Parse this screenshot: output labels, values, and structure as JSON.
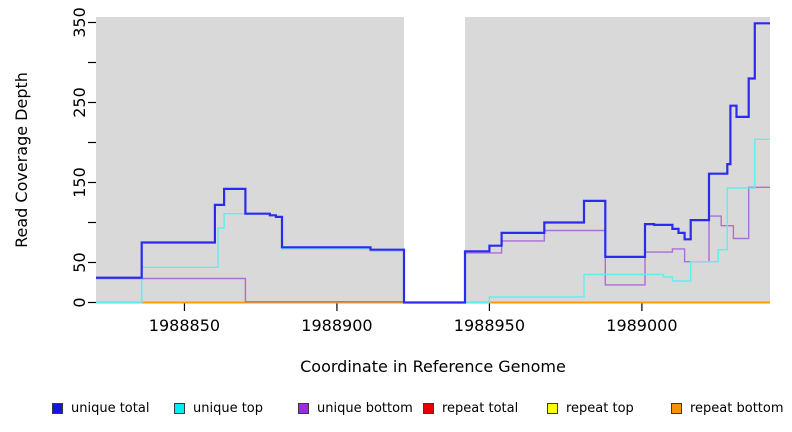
{
  "figure": {
    "y_axis_title": "Read Coverage Depth",
    "x_axis_title": "Coordinate in Reference Genome"
  },
  "colors": {
    "plot_background": "#d9d9d9",
    "masked_region": "#ffffff",
    "axis": "#000000"
  },
  "legend": {
    "items": [
      {
        "label": "unique total",
        "color": "#1414e8"
      },
      {
        "label": "unique top",
        "color": "#00eeee"
      },
      {
        "label": "unique bottom",
        "color": "#9c2be0"
      },
      {
        "label": "repeat total",
        "color": "#e60000"
      },
      {
        "label": "repeat top",
        "color": "#ffff00"
      },
      {
        "label": "repeat bottom",
        "color": "#f59300"
      }
    ]
  },
  "chart_data": {
    "type": "line",
    "title": "",
    "xlabel": "Coordinate in Reference Genome",
    "ylabel": "Read Coverage Depth",
    "xlim": [
      1988821,
      1989042
    ],
    "ylim": [
      0,
      357
    ],
    "grid": false,
    "legend_position": "bottom",
    "step_mode": true,
    "masked_region_x": [
      1988922,
      1988942
    ],
    "x_ticks": [
      {
        "v": 1988850,
        "label": "1988850"
      },
      {
        "v": 1988900,
        "label": "1988900"
      },
      {
        "v": 1988950,
        "label": "1988950"
      },
      {
        "v": 1989000,
        "label": "1989000"
      }
    ],
    "y_ticks": [
      {
        "v": 0,
        "label": "0"
      },
      {
        "v": 50,
        "label": "50"
      },
      {
        "v": 100,
        "label": ""
      },
      {
        "v": 150,
        "label": "150"
      },
      {
        "v": 200,
        "label": ""
      },
      {
        "v": 250,
        "label": "250"
      },
      {
        "v": 300,
        "label": ""
      },
      {
        "v": 350,
        "label": "350"
      }
    ],
    "series": [
      {
        "name": "repeat total",
        "color": "#e60000",
        "width": 2,
        "points": [
          [
            1988821,
            0
          ],
          [
            1989042,
            0
          ]
        ]
      },
      {
        "name": "repeat top",
        "color": "#ffff00",
        "width": 2,
        "points": [
          [
            1988821,
            0
          ],
          [
            1989042,
            0
          ]
        ]
      },
      {
        "name": "repeat bottom",
        "color": "#ff9d00",
        "width": 2,
        "points": [
          [
            1988821,
            0
          ],
          [
            1989042,
            0
          ]
        ]
      },
      {
        "name": "unique bottom",
        "color": "#ab6fd8",
        "width": 1.4,
        "points": [
          [
            1988821,
            30
          ],
          [
            1988870,
            1
          ],
          [
            1988922,
            0
          ],
          [
            1988942,
            62
          ],
          [
            1988954,
            77
          ],
          [
            1988968,
            90
          ],
          [
            1988988,
            22
          ],
          [
            1989001,
            63
          ],
          [
            1989010,
            67
          ],
          [
            1989014,
            51
          ],
          [
            1989022,
            108
          ],
          [
            1989026,
            96
          ],
          [
            1989030,
            80
          ],
          [
            1989035,
            144
          ],
          [
            1989042,
            144
          ]
        ]
      },
      {
        "name": "unique top",
        "color": "#5cefef",
        "width": 1.4,
        "points": [
          [
            1988821,
            0
          ],
          [
            1988836,
            44
          ],
          [
            1988861,
            93
          ],
          [
            1988863,
            111
          ],
          [
            1988878,
            109
          ],
          [
            1988880,
            107
          ],
          [
            1988882,
            67
          ],
          [
            1988911,
            64
          ],
          [
            1988922,
            0
          ],
          [
            1988950,
            7
          ],
          [
            1988981,
            35
          ],
          [
            1989007,
            32
          ],
          [
            1989010,
            27
          ],
          [
            1989016,
            51
          ],
          [
            1989025,
            66
          ],
          [
            1989028,
            143
          ],
          [
            1989037,
            204
          ],
          [
            1989042,
            204
          ]
        ]
      },
      {
        "name": "unique total",
        "color": "#2b2bef",
        "width": 2.2,
        "points": [
          [
            1988821,
            31
          ],
          [
            1988836,
            75
          ],
          [
            1988860,
            122
          ],
          [
            1988863,
            142
          ],
          [
            1988870,
            111
          ],
          [
            1988878,
            109
          ],
          [
            1988880,
            107
          ],
          [
            1988882,
            69
          ],
          [
            1988911,
            66
          ],
          [
            1988922,
            0
          ],
          [
            1988942,
            64
          ],
          [
            1988950,
            71
          ],
          [
            1988954,
            87
          ],
          [
            1988968,
            100
          ],
          [
            1988981,
            127
          ],
          [
            1988988,
            57
          ],
          [
            1989001,
            98
          ],
          [
            1989004,
            97
          ],
          [
            1989010,
            92
          ],
          [
            1989012,
            87
          ],
          [
            1989014,
            79
          ],
          [
            1989016,
            103
          ],
          [
            1989022,
            161
          ],
          [
            1989028,
            173
          ],
          [
            1989029,
            246
          ],
          [
            1989031,
            232
          ],
          [
            1989035,
            280
          ],
          [
            1989037,
            349
          ],
          [
            1989042,
            349
          ]
        ]
      }
    ]
  }
}
